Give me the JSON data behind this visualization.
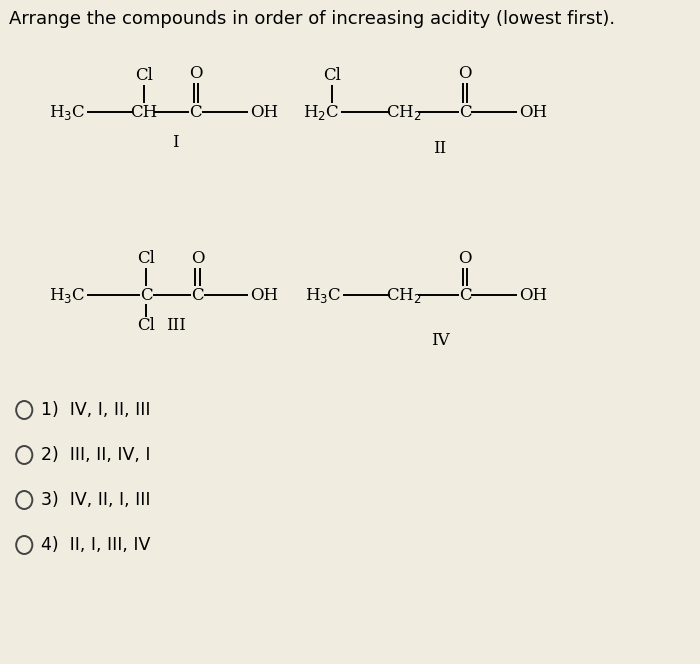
{
  "title": "Arrange the compounds in order of increasing acidity (lowest first).",
  "bg_color": "#f0ece0",
  "text_color": "#000000",
  "title_fontsize": 13.0,
  "options": [
    "1)  IV, I, II, III",
    "2)  III, II, IV, I",
    "3)  IV, II, I, III",
    "4)  II, I, III, IV"
  ]
}
